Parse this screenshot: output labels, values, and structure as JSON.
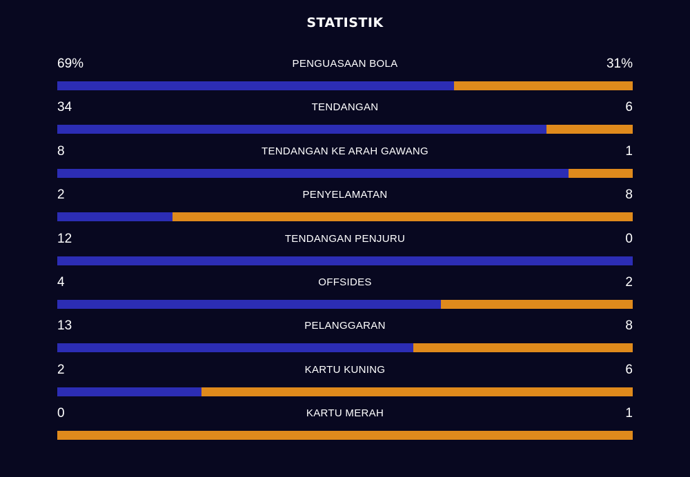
{
  "title": "STATISTIK",
  "colors": {
    "background": "#080820",
    "home": "#2c2db4",
    "away": "#df8a1c"
  },
  "chart_data": {
    "type": "bar",
    "orientation": "horizontal-stacked",
    "title": "STATISTIK",
    "categories": [
      "PENGUASAAN BOLA",
      "TENDANGAN",
      "TENDANGAN KE ARAH GAWANG",
      "PENYELAMATAN",
      "TENDANGAN PENJURU",
      "OFFSIDES",
      "PELANGGARAN",
      "KARTU KUNING",
      "KARTU MERAH"
    ],
    "rows": [
      {
        "label": "PENGUASAAN BOLA",
        "left_text": "69%",
        "right_text": "31%",
        "left": 69,
        "right": 31
      },
      {
        "label": "TENDANGAN",
        "left_text": "34",
        "right_text": "6",
        "left": 34,
        "right": 6
      },
      {
        "label": "TENDANGAN KE ARAH GAWANG",
        "left_text": "8",
        "right_text": "1",
        "left": 8,
        "right": 1
      },
      {
        "label": "PENYELAMATAN",
        "left_text": "2",
        "right_text": "8",
        "left": 2,
        "right": 8
      },
      {
        "label": "TENDANGAN PENJURU",
        "left_text": "12",
        "right_text": "0",
        "left": 12,
        "right": 0
      },
      {
        "label": "OFFSIDES",
        "left_text": "4",
        "right_text": "2",
        "left": 4,
        "right": 2
      },
      {
        "label": "PELANGGARAN",
        "left_text": "13",
        "right_text": "8",
        "left": 13,
        "right": 8
      },
      {
        "label": "KARTU KUNING",
        "left_text": "2",
        "right_text": "6",
        "left": 2,
        "right": 6
      },
      {
        "label": "KARTU MERAH",
        "left_text": "0",
        "right_text": "1",
        "left": 0,
        "right": 1
      }
    ]
  }
}
